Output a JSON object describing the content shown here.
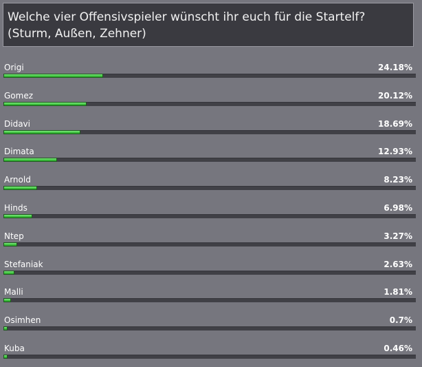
{
  "poll": {
    "question": "Welche vier Offensivspieler wünscht ihr euch für die Startelf?\n(Sturm, Außen, Zehner)",
    "accent_color": "#4ed04e",
    "options": [
      {
        "label": "Origi",
        "percent_text": "24.18%",
        "percent": 24.18
      },
      {
        "label": "Gomez",
        "percent_text": "20.12%",
        "percent": 20.12
      },
      {
        "label": "Didavi",
        "percent_text": "18.69%",
        "percent": 18.69
      },
      {
        "label": "Dimata",
        "percent_text": "12.93%",
        "percent": 12.93
      },
      {
        "label": "Arnold",
        "percent_text": "8.23%",
        "percent": 8.23
      },
      {
        "label": "Hinds",
        "percent_text": "6.98%",
        "percent": 6.98
      },
      {
        "label": "Ntep",
        "percent_text": "3.27%",
        "percent": 3.27
      },
      {
        "label": "Stefaniak",
        "percent_text": "2.63%",
        "percent": 2.63
      },
      {
        "label": "Malli",
        "percent_text": "1.81%",
        "percent": 1.81
      },
      {
        "label": "Osimhen",
        "percent_text": "0.7%",
        "percent": 0.7
      },
      {
        "label": "Kuba",
        "percent_text": "0.46%",
        "percent": 0.46
      }
    ]
  }
}
